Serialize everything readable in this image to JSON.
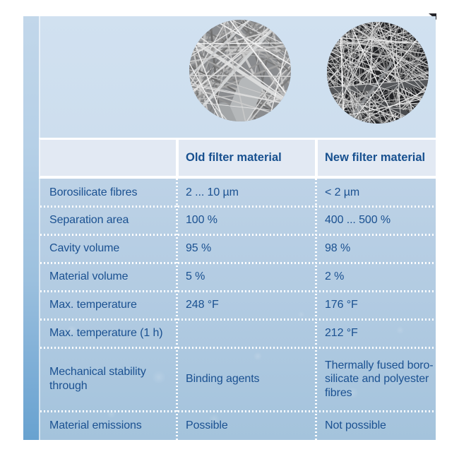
{
  "images": {
    "old": "sem-micrograph-old-filter",
    "new": "sem-micrograph-new-filter"
  },
  "table": {
    "header": {
      "old": "Old filter material",
      "new": "New filter material"
    },
    "rows": [
      {
        "label": "Borosilicate fibres",
        "old": "2 ... 10 µm",
        "new": "< 2 µm"
      },
      {
        "label": "Separation area",
        "old": "100 %",
        "new": "400 ... 500 %"
      },
      {
        "label": "Cavity volume",
        "old": "95 %",
        "new": "98 %"
      },
      {
        "label": "Material volume",
        "old": "5 %",
        "new": "2 %"
      },
      {
        "label": "Max. temperature",
        "old": "248 °F",
        "new": "176 °F"
      },
      {
        "label": "Max. temperature (1 h)",
        "old": "",
        "new": "212 °F"
      },
      {
        "label": "Mechanical stability\nthrough",
        "old": "Binding agents",
        "new": "Thermally fused boro-\nsilicate and polyester\nfibres"
      },
      {
        "label": "Material emissions",
        "old": "Possible",
        "new": "Not possible"
      }
    ]
  },
  "colors": {
    "text": "#1b5191",
    "header_text": "#17508f",
    "header_bg": "#e2e9f3",
    "image_area_bg": "#cfe0ef",
    "rows_bg_top": "#bdd2e6",
    "rows_bg_bottom": "#a4c3dc",
    "strip_top": "#c2d7ea",
    "strip_bottom": "#68a2d0",
    "separator": "#ffffff"
  }
}
